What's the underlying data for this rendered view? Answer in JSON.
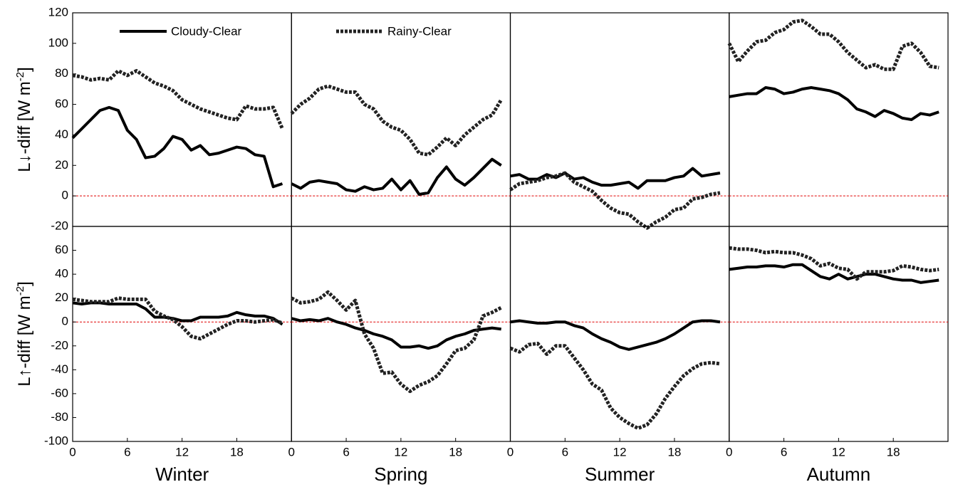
{
  "chart_data": [
    {
      "type": "line",
      "row": 0,
      "col": 0,
      "ylabel": "L↓-diff [W m",
      "ylabel_sup": "-2",
      "ylabel_end": "]",
      "x": [
        0,
        1,
        2,
        3,
        4,
        5,
        6,
        7,
        8,
        9,
        10,
        11,
        12,
        13,
        14,
        15,
        16,
        17,
        18,
        19,
        20,
        21,
        22,
        23
      ],
      "xlim": [
        0,
        24
      ],
      "ylim": [
        -20,
        120
      ],
      "yticks": [
        -20,
        0,
        20,
        40,
        60,
        80,
        100,
        120
      ],
      "hline": 0,
      "hline_color": "#e00000",
      "series": [
        {
          "name": "Cloudy-Clear",
          "color": "#000000",
          "style": "solid",
          "values": [
            38,
            44,
            50,
            56,
            58,
            56,
            43,
            37,
            25,
            26,
            31,
            39,
            37,
            30,
            33,
            27,
            28,
            30,
            32,
            31,
            27,
            26,
            6,
            8
          ]
        },
        {
          "name": "Rainy-Clear",
          "color": "#222222",
          "style": "dotted",
          "values": [
            79,
            78,
            76,
            77,
            76,
            82,
            79,
            82,
            78,
            74,
            72,
            69,
            63,
            60,
            57,
            55,
            53,
            51,
            50,
            59,
            57,
            57,
            58,
            44
          ]
        }
      ]
    },
    {
      "type": "line",
      "row": 0,
      "col": 1,
      "x": [
        0,
        1,
        2,
        3,
        4,
        5,
        6,
        7,
        8,
        9,
        10,
        11,
        12,
        13,
        14,
        15,
        16,
        17,
        18,
        19,
        20,
        21,
        22,
        23
      ],
      "xlim": [
        0,
        24
      ],
      "ylim": [
        -20,
        120
      ],
      "hline": 0,
      "hline_color": "#e00000",
      "series": [
        {
          "name": "Cloudy-Clear",
          "color": "#000000",
          "style": "solid",
          "values": [
            8,
            5,
            9,
            10,
            9,
            8,
            4,
            3,
            6,
            4,
            5,
            11,
            4,
            10,
            1,
            2,
            12,
            19,
            11,
            7,
            12,
            18,
            24,
            20
          ]
        },
        {
          "name": "Rainy-Clear",
          "color": "#222222",
          "style": "dotted",
          "values": [
            54,
            60,
            64,
            70,
            72,
            70,
            68,
            68,
            60,
            57,
            49,
            45,
            43,
            37,
            28,
            27,
            32,
            38,
            33,
            40,
            45,
            50,
            53,
            63
          ]
        }
      ]
    },
    {
      "type": "line",
      "row": 0,
      "col": 2,
      "x": [
        0,
        1,
        2,
        3,
        4,
        5,
        6,
        7,
        8,
        9,
        10,
        11,
        12,
        13,
        14,
        15,
        16,
        17,
        18,
        19,
        20,
        21,
        22,
        23
      ],
      "xlim": [
        0,
        24
      ],
      "ylim": [
        -20,
        120
      ],
      "hline": 0,
      "hline_color": "#e00000",
      "series": [
        {
          "name": "Cloudy-Clear",
          "color": "#000000",
          "style": "solid",
          "values": [
            13,
            14,
            11,
            11,
            14,
            12,
            15,
            11,
            12,
            9,
            7,
            7,
            8,
            9,
            5,
            10,
            10,
            10,
            12,
            13,
            18,
            13,
            14,
            15
          ]
        },
        {
          "name": "Rainy-Clear",
          "color": "#222222",
          "style": "dotted",
          "values": [
            4,
            8,
            9,
            10,
            12,
            13,
            15,
            9,
            6,
            3,
            -3,
            -8,
            -11,
            -12,
            -17,
            -21,
            -17,
            -14,
            -9,
            -8,
            -2,
            -1,
            1,
            2
          ]
        }
      ]
    },
    {
      "type": "line",
      "row": 0,
      "col": 3,
      "x": [
        0,
        1,
        2,
        3,
        4,
        5,
        6,
        7,
        8,
        9,
        10,
        11,
        12,
        13,
        14,
        15,
        16,
        17,
        18,
        19,
        20,
        21,
        22,
        23
      ],
      "xlim": [
        0,
        24
      ],
      "ylim": [
        -20,
        120
      ],
      "hline": 0,
      "hline_color": "#e00000",
      "series": [
        {
          "name": "Cloudy-Clear",
          "color": "#000000",
          "style": "solid",
          "values": [
            65,
            66,
            67,
            67,
            71,
            70,
            67,
            68,
            70,
            71,
            70,
            69,
            67,
            63,
            57,
            55,
            52,
            56,
            54,
            51,
            50,
            54,
            53,
            55
          ]
        },
        {
          "name": "Rainy-Clear",
          "color": "#222222",
          "style": "dotted",
          "values": [
            100,
            88,
            95,
            101,
            102,
            107,
            109,
            114,
            115,
            111,
            106,
            106,
            101,
            94,
            89,
            84,
            86,
            83,
            83,
            98,
            100,
            94,
            85,
            84
          ]
        }
      ]
    },
    {
      "type": "line",
      "row": 1,
      "col": 0,
      "ylabel": "L↑-diff [W m",
      "ylabel_sup": "-2",
      "ylabel_end": "]",
      "xlabel": "Winter",
      "x": [
        0,
        1,
        2,
        3,
        4,
        5,
        6,
        7,
        8,
        9,
        10,
        11,
        12,
        13,
        14,
        15,
        16,
        17,
        18,
        19,
        20,
        21,
        22,
        23
      ],
      "xlim": [
        0,
        24
      ],
      "ylim": [
        -100,
        80
      ],
      "xticks": [
        0,
        6,
        12,
        18
      ],
      "yticks": [
        -100,
        -80,
        -60,
        -40,
        -20,
        0,
        20,
        40,
        60
      ],
      "hline": 0,
      "hline_color": "#e00000",
      "series": [
        {
          "name": "Cloudy-Clear",
          "color": "#000000",
          "style": "solid",
          "values": [
            16,
            15,
            16,
            16,
            15,
            15,
            15,
            15,
            11,
            4,
            4,
            3,
            1,
            1,
            4,
            4,
            4,
            5,
            8,
            6,
            5,
            5,
            3,
            -2
          ]
        },
        {
          "name": "Rainy-Clear",
          "color": "#222222",
          "style": "dotted",
          "values": [
            19,
            18,
            17,
            17,
            17,
            20,
            19,
            19,
            19,
            9,
            5,
            2,
            -4,
            -12,
            -14,
            -10,
            -6,
            -2,
            1,
            1,
            0,
            1,
            2,
            -1
          ]
        }
      ]
    },
    {
      "type": "line",
      "row": 1,
      "col": 1,
      "xlabel": "Spring",
      "x": [
        0,
        1,
        2,
        3,
        4,
        5,
        6,
        7,
        8,
        9,
        10,
        11,
        12,
        13,
        14,
        15,
        16,
        17,
        18,
        19,
        20,
        21,
        22,
        23
      ],
      "xlim": [
        0,
        24
      ],
      "ylim": [
        -100,
        80
      ],
      "xticks": [
        0,
        6,
        12,
        18
      ],
      "hline": 0,
      "hline_color": "#e00000",
      "series": [
        {
          "name": "Cloudy-Clear",
          "color": "#000000",
          "style": "solid",
          "values": [
            3,
            1,
            2,
            1,
            3,
            0,
            -2,
            -5,
            -7,
            -10,
            -12,
            -15,
            -21,
            -21,
            -20,
            -22,
            -20,
            -15,
            -12,
            -10,
            -7,
            -6,
            -5,
            -6
          ]
        },
        {
          "name": "Rainy-Clear",
          "color": "#222222",
          "style": "dotted",
          "values": [
            20,
            16,
            17,
            19,
            25,
            18,
            10,
            18,
            -10,
            -22,
            -43,
            -42,
            -52,
            -58,
            -53,
            -50,
            -45,
            -35,
            -24,
            -22,
            -15,
            5,
            8,
            12
          ]
        }
      ]
    },
    {
      "type": "line",
      "row": 1,
      "col": 2,
      "xlabel": "Summer",
      "x": [
        0,
        1,
        2,
        3,
        4,
        5,
        6,
        7,
        8,
        9,
        10,
        11,
        12,
        13,
        14,
        15,
        16,
        17,
        18,
        19,
        20,
        21,
        22,
        23
      ],
      "xlim": [
        0,
        24
      ],
      "ylim": [
        -100,
        80
      ],
      "xticks": [
        0,
        6,
        12,
        18
      ],
      "hline": 0,
      "hline_color": "#e00000",
      "series": [
        {
          "name": "Cloudy-Clear",
          "color": "#000000",
          "style": "solid",
          "values": [
            0,
            1,
            0,
            -1,
            -1,
            0,
            0,
            -3,
            -5,
            -10,
            -14,
            -17,
            -21,
            -23,
            -21,
            -19,
            -17,
            -14,
            -10,
            -5,
            0,
            1,
            1,
            0
          ]
        },
        {
          "name": "Rainy-Clear",
          "color": "#222222",
          "style": "dotted",
          "values": [
            -22,
            -25,
            -19,
            -18,
            -27,
            -20,
            -20,
            -30,
            -40,
            -52,
            -57,
            -72,
            -80,
            -85,
            -89,
            -86,
            -77,
            -64,
            -54,
            -45,
            -39,
            -35,
            -34,
            -35
          ]
        }
      ]
    },
    {
      "type": "line",
      "row": 1,
      "col": 3,
      "xlabel": "Autumn",
      "x": [
        0,
        1,
        2,
        3,
        4,
        5,
        6,
        7,
        8,
        9,
        10,
        11,
        12,
        13,
        14,
        15,
        16,
        17,
        18,
        19,
        20,
        21,
        22,
        23
      ],
      "xlim": [
        0,
        24
      ],
      "ylim": [
        -100,
        80
      ],
      "xticks": [
        0,
        6,
        12,
        18
      ],
      "hline": 0,
      "hline_color": "#e00000",
      "series": [
        {
          "name": "Cloudy-Clear",
          "color": "#000000",
          "style": "solid",
          "values": [
            44,
            45,
            46,
            46,
            47,
            47,
            46,
            48,
            48,
            43,
            38,
            36,
            40,
            36,
            38,
            40,
            40,
            38,
            36,
            35,
            35,
            33,
            34,
            35
          ]
        },
        {
          "name": "Rainy-Clear",
          "color": "#222222",
          "style": "dotted",
          "values": [
            62,
            61,
            61,
            60,
            58,
            59,
            58,
            58,
            56,
            53,
            47,
            49,
            45,
            44,
            36,
            42,
            42,
            42,
            43,
            47,
            46,
            44,
            43,
            44
          ]
        }
      ]
    }
  ]
}
